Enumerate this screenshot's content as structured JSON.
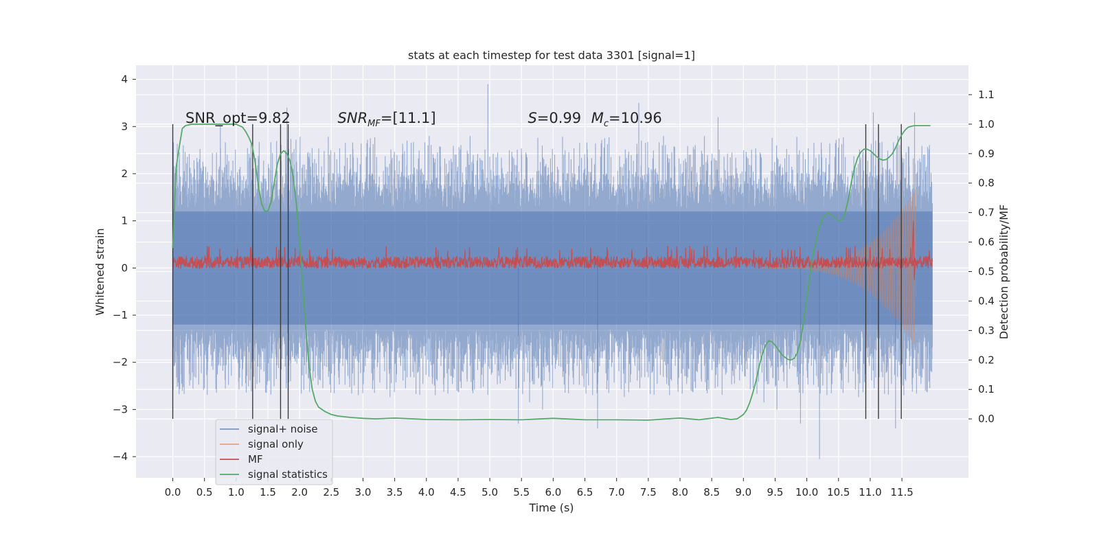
{
  "chart_data": {
    "type": "line",
    "title": "stats at each timestep for test data 3301 [signal=1]",
    "xlabel": "Time (s)",
    "ylabel": "Whitened strain",
    "ylabel_right": "Detection probability/MF",
    "xlim": [
      -0.58,
      12.55
    ],
    "ylim": [
      -4.45,
      4.3
    ],
    "ylim_right": [
      -0.2,
      1.2
    ],
    "x_ticks": [
      "0.0",
      "0.5",
      "1.0",
      "1.5",
      "2.0",
      "2.5",
      "3.0",
      "3.5",
      "4.0",
      "4.5",
      "5.0",
      "5.5",
      "6.0",
      "6.5",
      "7.0",
      "7.5",
      "8.0",
      "8.5",
      "9.0",
      "9.5",
      "10.0",
      "10.5",
      "11.0",
      "11.5"
    ],
    "y_ticks": [
      "4",
      "3",
      "2",
      "1",
      "0",
      "−1",
      "−2",
      "−3",
      "−4"
    ],
    "y_ticks_right": [
      "1.1",
      "1.0",
      "0.9",
      "0.8",
      "0.7",
      "0.6",
      "0.5",
      "0.4",
      "0.3",
      "0.2",
      "0.1",
      "0.0"
    ],
    "grid": true,
    "legend_position": "lower-left",
    "background_color": "#eaeaf2",
    "annotations": [
      {
        "text": "SNR_opt=9.82",
        "x": 0.2,
        "y": 3.08,
        "italic": false
      },
      {
        "text": "SNR_MF=[11.1]",
        "x": 2.6,
        "y": 3.08,
        "italic": true
      },
      {
        "text": "S=0.99",
        "x": 5.6,
        "y": 3.08,
        "italic": true
      },
      {
        "text": "M_c=10.96",
        "x": 6.6,
        "y": 3.08,
        "italic": true
      }
    ],
    "vertical_markers": [
      0.0,
      1.26,
      1.7,
      1.82,
      10.93,
      11.13,
      11.49
    ],
    "vertical_marker_range": [
      -3.2,
      3.05
    ],
    "series": [
      {
        "name": "signal+ noise",
        "color": "#4c72b0",
        "kind": "noise",
        "x_range": [
          0.0,
          11.98
        ],
        "envelope_typical": 2.3,
        "envelope_core": 1.25,
        "extreme_peaks": [
          [
            0.75,
            3.0
          ],
          [
            1.8,
            3.4
          ],
          [
            4.97,
            3.9
          ],
          [
            5.45,
            -3.3
          ],
          [
            6.7,
            -3.4
          ],
          [
            7.35,
            3.5
          ],
          [
            8.6,
            3.2
          ],
          [
            9.9,
            -3.3
          ],
          [
            10.2,
            -4.05
          ],
          [
            11.05,
            3.3
          ],
          [
            11.7,
            3.3
          ],
          [
            11.4,
            -3.4
          ]
        ]
      },
      {
        "name": "signal only",
        "color": "#dd8452",
        "kind": "chirp",
        "x_range": [
          9.3,
          11.72
        ],
        "amplitude_at_end": 1.7
      },
      {
        "name": "MF",
        "color": "#c44e52",
        "kind": "band",
        "x_range": [
          0.0,
          11.98
        ],
        "center": 0.12,
        "band_amplitude": 0.13,
        "spike": [
          11.68,
          1.0,
          -0.25
        ]
      },
      {
        "name": "signal statistics",
        "color": "#55a868",
        "kind": "curve",
        "axis": "right",
        "x": [
          0.0,
          0.05,
          0.1,
          0.15,
          0.2,
          0.3,
          0.5,
          0.8,
          1.0,
          1.1,
          1.15,
          1.2,
          1.25,
          1.3,
          1.35,
          1.4,
          1.45,
          1.5,
          1.55,
          1.6,
          1.65,
          1.7,
          1.75,
          1.8,
          1.85,
          1.9,
          1.95,
          2.0,
          2.05,
          2.1,
          2.15,
          2.2,
          2.25,
          2.3,
          2.4,
          2.5,
          2.6,
          2.8,
          3.0,
          3.2,
          3.5,
          3.8,
          4.0,
          4.5,
          5.0,
          5.5,
          6.0,
          6.5,
          7.0,
          7.5,
          8.0,
          8.3,
          8.6,
          8.8,
          8.9,
          9.0,
          9.05,
          9.1,
          9.15,
          9.2,
          9.25,
          9.3,
          9.35,
          9.4,
          9.45,
          9.5,
          9.55,
          9.6,
          9.65,
          9.7,
          9.75,
          9.8,
          9.85,
          9.9,
          9.95,
          10.0,
          10.05,
          10.1,
          10.15,
          10.2,
          10.25,
          10.3,
          10.35,
          10.4,
          10.45,
          10.5,
          10.55,
          10.6,
          10.65,
          10.7,
          10.75,
          10.8,
          10.85,
          10.9,
          10.95,
          11.0,
          11.05,
          11.1,
          11.15,
          11.2,
          11.25,
          11.3,
          11.35,
          11.4,
          11.45,
          11.5,
          11.55,
          11.6,
          11.65,
          11.7,
          11.75,
          11.8,
          11.85,
          11.9,
          11.95
        ],
        "y": [
          0.58,
          0.85,
          0.92,
          0.985,
          0.995,
          1.0,
          1.0,
          1.0,
          1.0,
          0.99,
          0.975,
          0.955,
          0.93,
          0.87,
          0.79,
          0.73,
          0.705,
          0.705,
          0.735,
          0.8,
          0.865,
          0.9,
          0.91,
          0.9,
          0.875,
          0.82,
          0.73,
          0.6,
          0.45,
          0.3,
          0.18,
          0.1,
          0.06,
          0.04,
          0.025,
          0.015,
          0.01,
          0.005,
          0.002,
          0.0,
          0.003,
          0.0,
          -0.002,
          -0.003,
          -0.002,
          -0.003,
          0.002,
          -0.003,
          -0.003,
          -0.004,
          0.003,
          -0.003,
          0.005,
          -0.002,
          0.0,
          0.015,
          0.03,
          0.055,
          0.09,
          0.13,
          0.18,
          0.22,
          0.25,
          0.265,
          0.262,
          0.25,
          0.235,
          0.22,
          0.21,
          0.202,
          0.2,
          0.205,
          0.225,
          0.265,
          0.33,
          0.41,
          0.49,
          0.56,
          0.61,
          0.65,
          0.68,
          0.695,
          0.698,
          0.69,
          0.68,
          0.672,
          0.675,
          0.695,
          0.74,
          0.8,
          0.85,
          0.885,
          0.905,
          0.915,
          0.915,
          0.91,
          0.9,
          0.89,
          0.882,
          0.878,
          0.88,
          0.888,
          0.9,
          0.92,
          0.945,
          0.965,
          0.98,
          0.99,
          0.993,
          0.995,
          0.995,
          0.995,
          0.995,
          0.995,
          0.995
        ]
      }
    ]
  }
}
